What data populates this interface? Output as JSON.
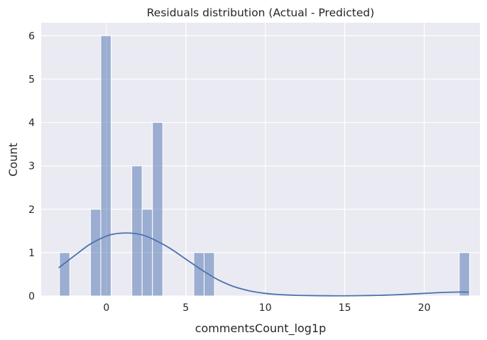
{
  "chart_data": {
    "type": "histogram",
    "title": "Residuals distribution (Actual - Predicted)",
    "xlabel": "commentsCount_log1p",
    "ylabel": "Count",
    "xlim": [
      -4.1,
      23.5
    ],
    "ylim": [
      0,
      6.3
    ],
    "x_ticks": [
      0,
      5,
      10,
      15,
      20
    ],
    "y_ticks": [
      0,
      1,
      2,
      3,
      4,
      5,
      6
    ],
    "grid": true,
    "legend": "none",
    "bar_color": "#4c72b0",
    "kde_color": "#4c72b0",
    "background_color": "#eaeaf2",
    "bins": [
      {
        "x0": -2.95,
        "x1": -2.3,
        "count": 1
      },
      {
        "x0": -1.0,
        "x1": -0.35,
        "count": 2
      },
      {
        "x0": -0.35,
        "x1": 0.3,
        "count": 6
      },
      {
        "x0": 1.6,
        "x1": 2.25,
        "count": 3
      },
      {
        "x0": 2.25,
        "x1": 2.9,
        "count": 2
      },
      {
        "x0": 2.9,
        "x1": 3.55,
        "count": 4
      },
      {
        "x0": 5.5,
        "x1": 6.15,
        "count": 1
      },
      {
        "x0": 6.15,
        "x1": 6.8,
        "count": 1
      },
      {
        "x0": 22.2,
        "x1": 22.85,
        "count": 1
      }
    ],
    "kde": {
      "x": [
        -3.0,
        -2.0,
        -1.0,
        0.0,
        0.5,
        1.0,
        1.5,
        2.0,
        2.5,
        3.0,
        4.0,
        5.0,
        6.0,
        7.0,
        8.0,
        9.0,
        10.0,
        11.0,
        12.0,
        14.0,
        16.0,
        18.0,
        20.0,
        21.0,
        22.0,
        22.8
      ],
      "y": [
        0.65,
        0.93,
        1.2,
        1.38,
        1.43,
        1.45,
        1.45,
        1.43,
        1.38,
        1.3,
        1.1,
        0.85,
        0.6,
        0.38,
        0.22,
        0.12,
        0.06,
        0.03,
        0.015,
        0.005,
        0.008,
        0.025,
        0.06,
        0.08,
        0.09,
        0.09
      ]
    }
  }
}
